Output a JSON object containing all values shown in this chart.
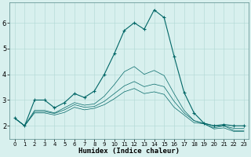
{
  "xlabel": "Humidex (Indice chaleur)",
  "background_color": "#d8f0ee",
  "line_color": "#006666",
  "xlim": [
    -0.5,
    23.5
  ],
  "ylim": [
    1.5,
    6.8
  ],
  "yticks": [
    2,
    3,
    4,
    5,
    6
  ],
  "xticks": [
    0,
    1,
    2,
    3,
    4,
    5,
    6,
    7,
    8,
    9,
    10,
    11,
    12,
    13,
    14,
    15,
    16,
    17,
    18,
    19,
    20,
    21,
    22,
    23
  ],
  "series": [
    [
      2.3,
      2.0,
      3.0,
      3.0,
      2.7,
      2.9,
      3.25,
      3.1,
      3.35,
      4.0,
      4.8,
      5.7,
      6.0,
      5.75,
      6.5,
      6.2,
      4.7,
      3.3,
      2.5,
      2.1,
      2.0,
      2.05,
      2.0,
      2.0
    ],
    [
      2.3,
      2.0,
      2.6,
      2.6,
      2.5,
      2.7,
      2.9,
      2.8,
      2.85,
      3.15,
      3.6,
      4.1,
      4.3,
      4.0,
      4.15,
      3.95,
      3.25,
      2.6,
      2.2,
      2.1,
      2.0,
      2.0,
      1.9,
      1.9
    ],
    [
      2.3,
      2.0,
      2.55,
      2.55,
      2.48,
      2.62,
      2.82,
      2.72,
      2.75,
      2.95,
      3.25,
      3.55,
      3.72,
      3.52,
      3.62,
      3.52,
      2.95,
      2.5,
      2.2,
      2.08,
      1.92,
      2.0,
      1.82,
      1.82
    ],
    [
      2.3,
      2.0,
      2.5,
      2.5,
      2.42,
      2.52,
      2.72,
      2.62,
      2.68,
      2.82,
      3.05,
      3.32,
      3.45,
      3.25,
      3.32,
      3.22,
      2.72,
      2.42,
      2.12,
      2.08,
      1.88,
      1.92,
      1.78,
      1.78
    ]
  ]
}
